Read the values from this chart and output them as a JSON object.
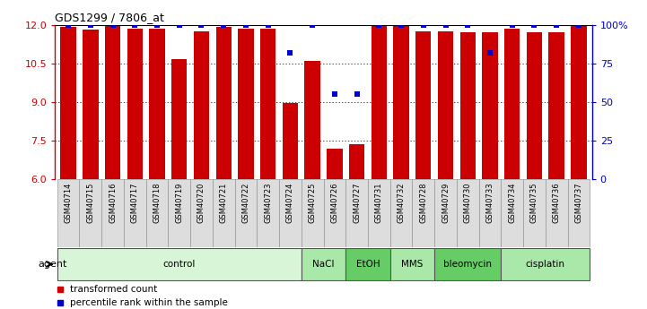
{
  "title": "GDS1299 / 7806_at",
  "samples": [
    "GSM40714",
    "GSM40715",
    "GSM40716",
    "GSM40717",
    "GSM40718",
    "GSM40719",
    "GSM40720",
    "GSM40721",
    "GSM40722",
    "GSM40723",
    "GSM40724",
    "GSM40725",
    "GSM40726",
    "GSM40727",
    "GSM40731",
    "GSM40732",
    "GSM40728",
    "GSM40729",
    "GSM40730",
    "GSM40733",
    "GSM40734",
    "GSM40735",
    "GSM40736",
    "GSM40737"
  ],
  "red_values": [
    11.9,
    11.8,
    12.0,
    11.85,
    11.85,
    10.65,
    11.75,
    11.9,
    11.85,
    11.85,
    8.95,
    10.6,
    7.2,
    7.35,
    12.0,
    11.95,
    11.75,
    11.75,
    11.7,
    11.7,
    11.85,
    11.7,
    11.7,
    12.0
  ],
  "blue_values": [
    100,
    100,
    100,
    100,
    100,
    100,
    100,
    100,
    100,
    100,
    82,
    100,
    55,
    55,
    100,
    100,
    100,
    100,
    100,
    82,
    100,
    100,
    100,
    100
  ],
  "ylim_left": [
    6,
    12
  ],
  "ylim_right": [
    0,
    100
  ],
  "yticks_left": [
    6,
    7.5,
    9,
    10.5,
    12
  ],
  "yticks_right": [
    0,
    25,
    50,
    75,
    100
  ],
  "groups": [
    {
      "label": "control",
      "start": 0,
      "end": 11,
      "color": "#d8f5d8"
    },
    {
      "label": "NaCl",
      "start": 11,
      "end": 13,
      "color": "#aae8aa"
    },
    {
      "label": "EtOH",
      "start": 13,
      "end": 15,
      "color": "#66cc66"
    },
    {
      "label": "MMS",
      "start": 15,
      "end": 17,
      "color": "#aae8aa"
    },
    {
      "label": "bleomycin",
      "start": 17,
      "end": 20,
      "color": "#66cc66"
    },
    {
      "label": "cisplatin",
      "start": 20,
      "end": 24,
      "color": "#aae8aa"
    }
  ],
  "bar_color": "#cc0000",
  "dot_color": "#0000cc",
  "left_axis_color": "#cc0000",
  "right_axis_color": "#0000cc",
  "legend_items": [
    {
      "label": "transformed count",
      "color": "#cc0000"
    },
    {
      "label": "percentile rank within the sample",
      "color": "#0000cc"
    }
  ]
}
